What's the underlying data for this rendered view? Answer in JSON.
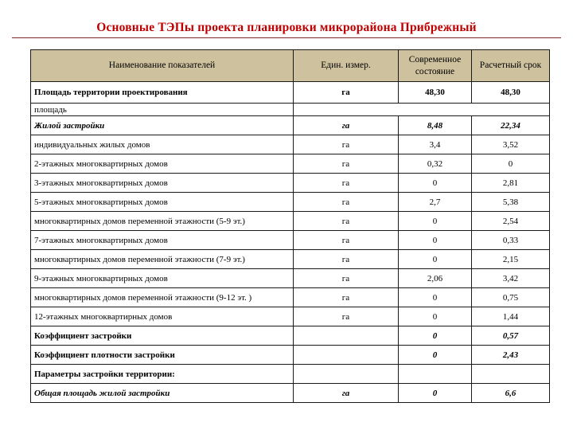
{
  "colors": {
    "title_color": "#c00000",
    "rule_color": "#7f2a2a",
    "header_bg": "#cec19d"
  },
  "slide": {
    "title": "Основные ТЭПы проекта планировки микрорайона Прибрежный"
  },
  "table": {
    "headers": [
      "Наименование показателей",
      "Един. измер.",
      "Современное состояние",
      "Расчетный срок"
    ],
    "rows": [
      {
        "name": "Площадь территории проектирования",
        "unit": "га",
        "current": "48,30",
        "calc": "48,30",
        "ncls": "b",
        "vcls": "b",
        "rowClass": "tall",
        "merged": false
      },
      {
        "name": "площадь",
        "unit": "",
        "current": "",
        "calc": "",
        "ncls": "",
        "vcls": "",
        "rowClass": "short",
        "merged": true
      },
      {
        "name": "Жилой застройки",
        "unit": "га",
        "current": "8,48",
        "calc": "22,34",
        "ncls": "bi",
        "vcls": "bi",
        "rowClass": "",
        "merged": false
      },
      {
        "name": "индивидуальных жилых домов",
        "unit": "га",
        "current": "3,4",
        "calc": "3,52",
        "ncls": "",
        "vcls": "",
        "rowClass": "",
        "merged": false
      },
      {
        "name": "2-этажных многоквартирных домов",
        "unit": "га",
        "current": "0,32",
        "calc": "0",
        "ncls": "",
        "vcls": "",
        "rowClass": "",
        "merged": false
      },
      {
        "name": "3-этажных многоквартирных домов",
        "unit": "га",
        "current": "0",
        "calc": "2,81",
        "ncls": "",
        "vcls": "",
        "rowClass": "",
        "merged": false
      },
      {
        "name": "5-этажных многоквартирных домов",
        "unit": "га",
        "current": "2,7",
        "calc": "5,38",
        "ncls": "",
        "vcls": "",
        "rowClass": "",
        "merged": false
      },
      {
        "name": "многоквартирных домов переменной этажности (5-9 эт.)",
        "unit": "га",
        "current": "0",
        "calc": "2,54",
        "ncls": "",
        "vcls": "",
        "rowClass": "",
        "merged": false
      },
      {
        "name": "7-этажных многоквартирных домов",
        "unit": "га",
        "current": "0",
        "calc": "0,33",
        "ncls": "",
        "vcls": "",
        "rowClass": "",
        "merged": false
      },
      {
        "name": "многоквартирных домов переменной этажности (7-9 эт.)",
        "unit": "га",
        "current": "0",
        "calc": "2,15",
        "ncls": "",
        "vcls": "",
        "rowClass": "",
        "merged": false
      },
      {
        "name": "9-этажных многоквартирных домов",
        "unit": "га",
        "current": "2,06",
        "calc": "3,42",
        "ncls": "",
        "vcls": "",
        "rowClass": "",
        "merged": false
      },
      {
        "name": "многоквартирных домов переменной этажности (9-12 эт. )",
        "unit": "га",
        "current": "0",
        "calc": "0,75",
        "ncls": "",
        "vcls": "",
        "rowClass": "",
        "merged": false
      },
      {
        "name": "12-этажных многоквартирных домов",
        "unit": "га",
        "current": "0",
        "calc": "1,44",
        "ncls": "",
        "vcls": "",
        "rowClass": "",
        "merged": false
      },
      {
        "name": "Коэффициент застройки",
        "unit": "",
        "current": "0",
        "calc": "0,57",
        "ncls": "b",
        "vcls": "bi",
        "rowClass": "",
        "merged": false
      },
      {
        "name": "Коэффициент плотности застройки",
        "unit": "",
        "current": "0",
        "calc": "2,43",
        "ncls": "b",
        "vcls": "bi",
        "rowClass": "",
        "merged": false
      },
      {
        "name": "Параметры застройки территории:",
        "unit": "",
        "current": "",
        "calc": "",
        "ncls": "b",
        "vcls": "",
        "rowClass": "",
        "merged": false
      },
      {
        "name": "Общая площадь жилой застройки",
        "unit": "га",
        "current": "0",
        "calc": "6,6",
        "ncls": "bi",
        "vcls": "bi",
        "rowClass": "",
        "merged": false
      }
    ]
  }
}
